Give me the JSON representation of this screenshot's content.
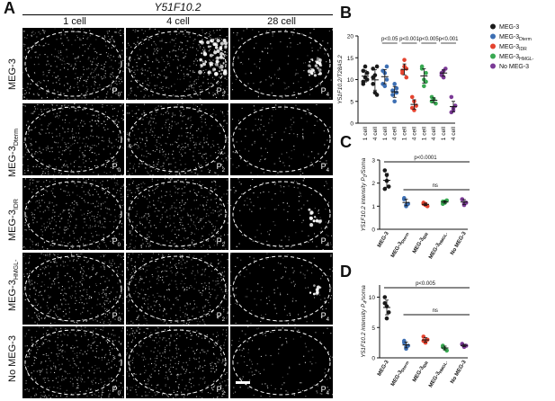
{
  "panel_a": {
    "letter": "A",
    "gene": "Y51F10.2",
    "columns": [
      "1 cell",
      "4 cell",
      "28 cell"
    ],
    "rows": [
      {
        "main": "MEG-3",
        "sub": ""
      },
      {
        "main": "MEG-3",
        "sub": "Dterm"
      },
      {
        "main": "MEG-3",
        "sub": "IDR"
      },
      {
        "main": "MEG-3",
        "sub": "HMGL-"
      },
      {
        "main": "No MEG-3",
        "sub": ""
      }
    ],
    "p_labels": [
      "P0",
      "P2",
      "P4"
    ]
  },
  "chart_data": [
    {
      "panel": "B",
      "type": "scatter",
      "ylabel": "Y51F10.2/T28A5.2",
      "ylim": [
        0,
        20
      ],
      "yticks": [
        0,
        5,
        10,
        15,
        20
      ],
      "categories": [
        "1 cell",
        "4 cell",
        "1 cell",
        "4 cell",
        "1 cell",
        "4 cell",
        "1 cell",
        "4 cell",
        "1 cell",
        "4 cell"
      ],
      "annotations": [
        "p<0.05",
        "p<0.001",
        "p<0.005",
        "p<0.001"
      ],
      "legend": [
        {
          "name": "MEG-3",
          "sub": "",
          "color": "#1a1a1a"
        },
        {
          "name": "MEG-3",
          "sub": "Dterm",
          "color": "#3d6fb3"
        },
        {
          "name": "MEG-3",
          "sub": "IDR",
          "color": "#e4432f"
        },
        {
          "name": "MEG-3",
          "sub": "HMGL-",
          "color": "#39a852"
        },
        {
          "name": "No MEG-3",
          "sub": "",
          "color": "#7b3a96"
        }
      ],
      "series": [
        {
          "color": "#1a1a1a",
          "group": 0,
          "one_cell": [
            9.5,
            10.5,
            11.5,
            12.0,
            13.0,
            10.0,
            9.0
          ],
          "four_cell": [
            10.5,
            7.0,
            13.0,
            12.5,
            11.0,
            6.5,
            9.0
          ]
        },
        {
          "color": "#3d6fb3",
          "group": 1,
          "one_cell": [
            9.0,
            11.5,
            13.0,
            12.0,
            8.5,
            10.0
          ],
          "four_cell": [
            7.5,
            5.0,
            8.0,
            6.5,
            9.0,
            7.0
          ]
        },
        {
          "color": "#e4432f",
          "group": 2,
          "one_cell": [
            12.0,
            14.5,
            10.5,
            11.5,
            13.0,
            12.5
          ],
          "four_cell": [
            3.5,
            5.0,
            4.0,
            6.0,
            3.0
          ]
        },
        {
          "color": "#39a852",
          "group": 3,
          "one_cell": [
            13.0,
            10.0,
            11.5,
            12.5,
            8.5,
            9.5
          ],
          "four_cell": [
            6.0,
            5.5,
            4.5,
            5.0
          ]
        },
        {
          "color": "#7b3a96",
          "group": 4,
          "one_cell": [
            11.0,
            12.0,
            12.5,
            11.5,
            10.5
          ],
          "four_cell": [
            2.5,
            3.0,
            4.0,
            6.0,
            3.5
          ]
        }
      ]
    },
    {
      "panel": "C",
      "type": "scatter",
      "ylabel": "Y51F10.2 intensity P",
      "ylabel_sub": "0",
      "ylabel_tail": "/Soma",
      "ylim": [
        0,
        3
      ],
      "yticks": [
        0,
        1,
        2,
        3
      ],
      "categories": [
        {
          "main": "MEG-3",
          "sub": ""
        },
        {
          "main": "MEG-3",
          "sub": "Dterm"
        },
        {
          "main": "MEG-3",
          "sub": "IDR"
        },
        {
          "main": "MEG-3",
          "sub": "HMGL-"
        },
        {
          "main": "No MEG-3",
          "sub": ""
        }
      ],
      "annotations": [
        "p<0.0001",
        "ns"
      ],
      "series": [
        {
          "color": "#1a1a1a",
          "values": [
            2.55,
            2.1,
            1.85,
            1.75,
            2.35
          ]
        },
        {
          "color": "#3d6fb3",
          "values": [
            1.3,
            1.05,
            1.1,
            1.35,
            1.0
          ]
        },
        {
          "color": "#e4432f",
          "values": [
            1.1,
            1.05,
            1.0,
            1.15,
            1.1
          ]
        },
        {
          "color": "#39a852",
          "values": [
            1.2,
            1.15,
            1.25,
            1.1,
            1.2
          ]
        },
        {
          "color": "#7b3a96",
          "values": [
            1.3,
            1.1,
            1.15,
            1.3,
            1.05
          ]
        }
      ]
    },
    {
      "panel": "D",
      "type": "scatter",
      "ylabel": "Y51F10.2 intensity P",
      "ylabel_sub": "4",
      "ylabel_tail": "/soma",
      "ylim": [
        0,
        12
      ],
      "yticks": [
        0,
        5,
        10
      ],
      "categories": [
        {
          "main": "MEG-3",
          "sub": ""
        },
        {
          "main": "MEG-3",
          "sub": "Dterm"
        },
        {
          "main": "MEG-3",
          "sub": "IDR"
        },
        {
          "main": "MEG-3",
          "sub": "HMGL-"
        },
        {
          "main": "No MEG-3",
          "sub": ""
        }
      ],
      "annotations": [
        "p<0.005",
        "ns"
      ],
      "series": [
        {
          "color": "#1a1a1a",
          "values": [
            10.0,
            8.5,
            7.5,
            9.0,
            6.5
          ]
        },
        {
          "color": "#3d6fb3",
          "values": [
            2.8,
            1.8,
            2.0,
            2.5,
            1.5
          ]
        },
        {
          "color": "#e4432f",
          "values": [
            3.5,
            2.5,
            3.0,
            2.8
          ]
        },
        {
          "color": "#39a852",
          "values": [
            2.0,
            1.5,
            1.2,
            1.8
          ]
        },
        {
          "color": "#7b3a96",
          "values": [
            2.2,
            1.8,
            2.0,
            2.3,
            1.9
          ]
        }
      ]
    }
  ]
}
